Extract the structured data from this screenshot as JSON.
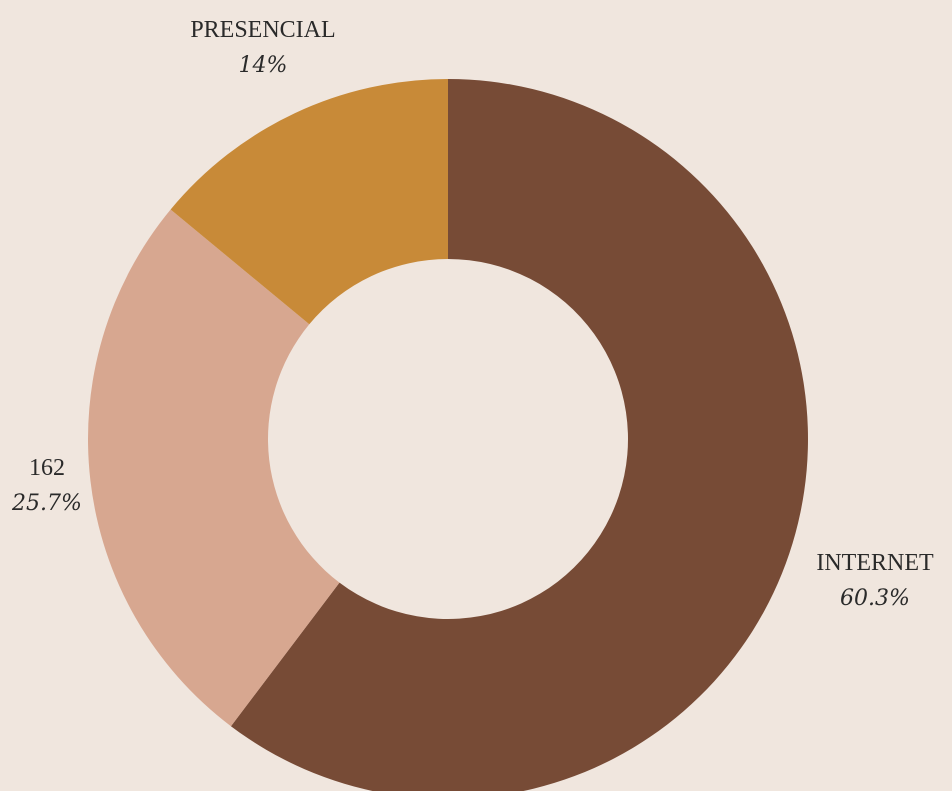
{
  "chart_data": {
    "type": "pie",
    "variant": "donut",
    "title": "",
    "legend": "none",
    "slices": [
      {
        "label": "INTERNET",
        "value": 60.3,
        "value_label": "60.3%",
        "color": "#774b36"
      },
      {
        "label": "162",
        "value": 25.7,
        "value_label": "25.7%",
        "color": "#d7a790"
      },
      {
        "label": "PRESENCIAL",
        "value": 14.0,
        "value_label": "14%",
        "color": "#c88a38"
      }
    ]
  },
  "background_color": "#f0e6de"
}
